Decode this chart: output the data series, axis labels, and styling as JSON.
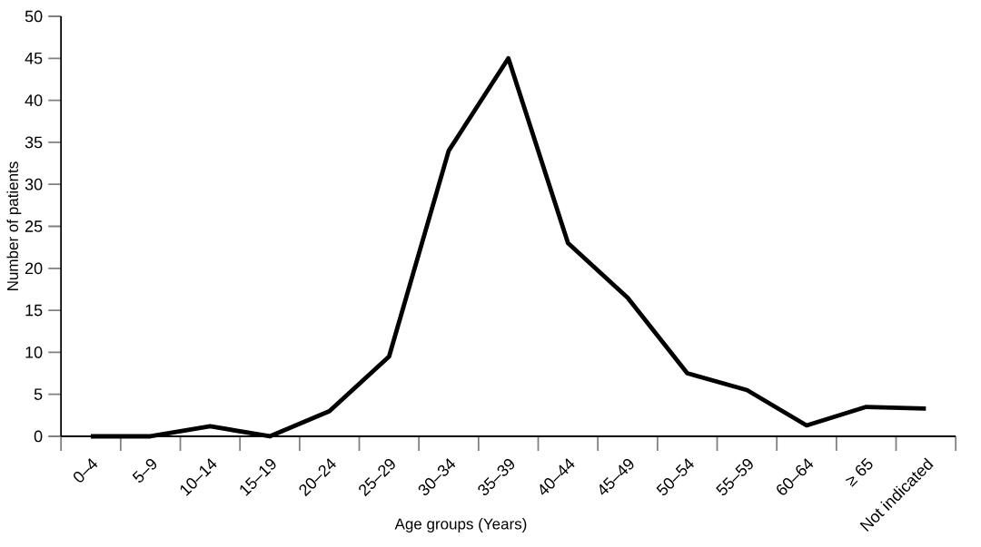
{
  "chart_data": {
    "type": "line",
    "xlabel": "Age groups (Years)",
    "ylabel": "Number of patients",
    "categories": [
      "0–4",
      "5–9",
      "10–14",
      "15–19",
      "20–24",
      "25–29",
      "30–34",
      "35–39",
      "40–44",
      "45–49",
      "50–54",
      "55–59",
      "60–64",
      "≥ 65",
      "Not indicated"
    ],
    "values": [
      0,
      0,
      1.2,
      0,
      3,
      9.5,
      34,
      45,
      23,
      16.5,
      7.5,
      5.5,
      1.3,
      3.5,
      3.3
    ],
    "color": "#000000",
    "ylim": [
      0,
      50
    ],
    "yticks": [
      0,
      5,
      10,
      15,
      20,
      25,
      30,
      35,
      40,
      45,
      50
    ],
    "grid": false
  }
}
